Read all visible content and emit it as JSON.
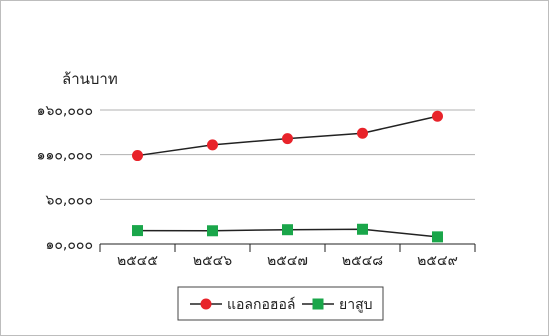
{
  "chart_data": {
    "type": "line",
    "title": "",
    "ylabel": "ล้านบาท",
    "xlabel": "",
    "categories": [
      "๒๕๔๕",
      "๒๕๔๖",
      "๒๕๔๗",
      "๒๕๔๘",
      "๒๕๔๙"
    ],
    "y_ticks": [
      {
        "value": 10000,
        "label": "๑๐,๐๐๐"
      },
      {
        "value": 60000,
        "label": "๖๐,๐๐๐"
      },
      {
        "value": 110000,
        "label": "๑๑๐,๐๐๐"
      },
      {
        "value": 160000,
        "label": "๑๖๐,๐๐๐"
      }
    ],
    "ylim": [
      10000,
      160000
    ],
    "grid": true,
    "legend_position": "bottom",
    "series": [
      {
        "name": "แอลกอฮอล์",
        "values": [
          109000,
          121000,
          128000,
          134000,
          153000
        ],
        "color": "#e8232a",
        "marker": "circle"
      },
      {
        "name": "ยาสูบ",
        "values": [
          25000,
          24800,
          26000,
          26500,
          18000
        ],
        "color": "#1aa64a",
        "marker": "square"
      }
    ]
  }
}
